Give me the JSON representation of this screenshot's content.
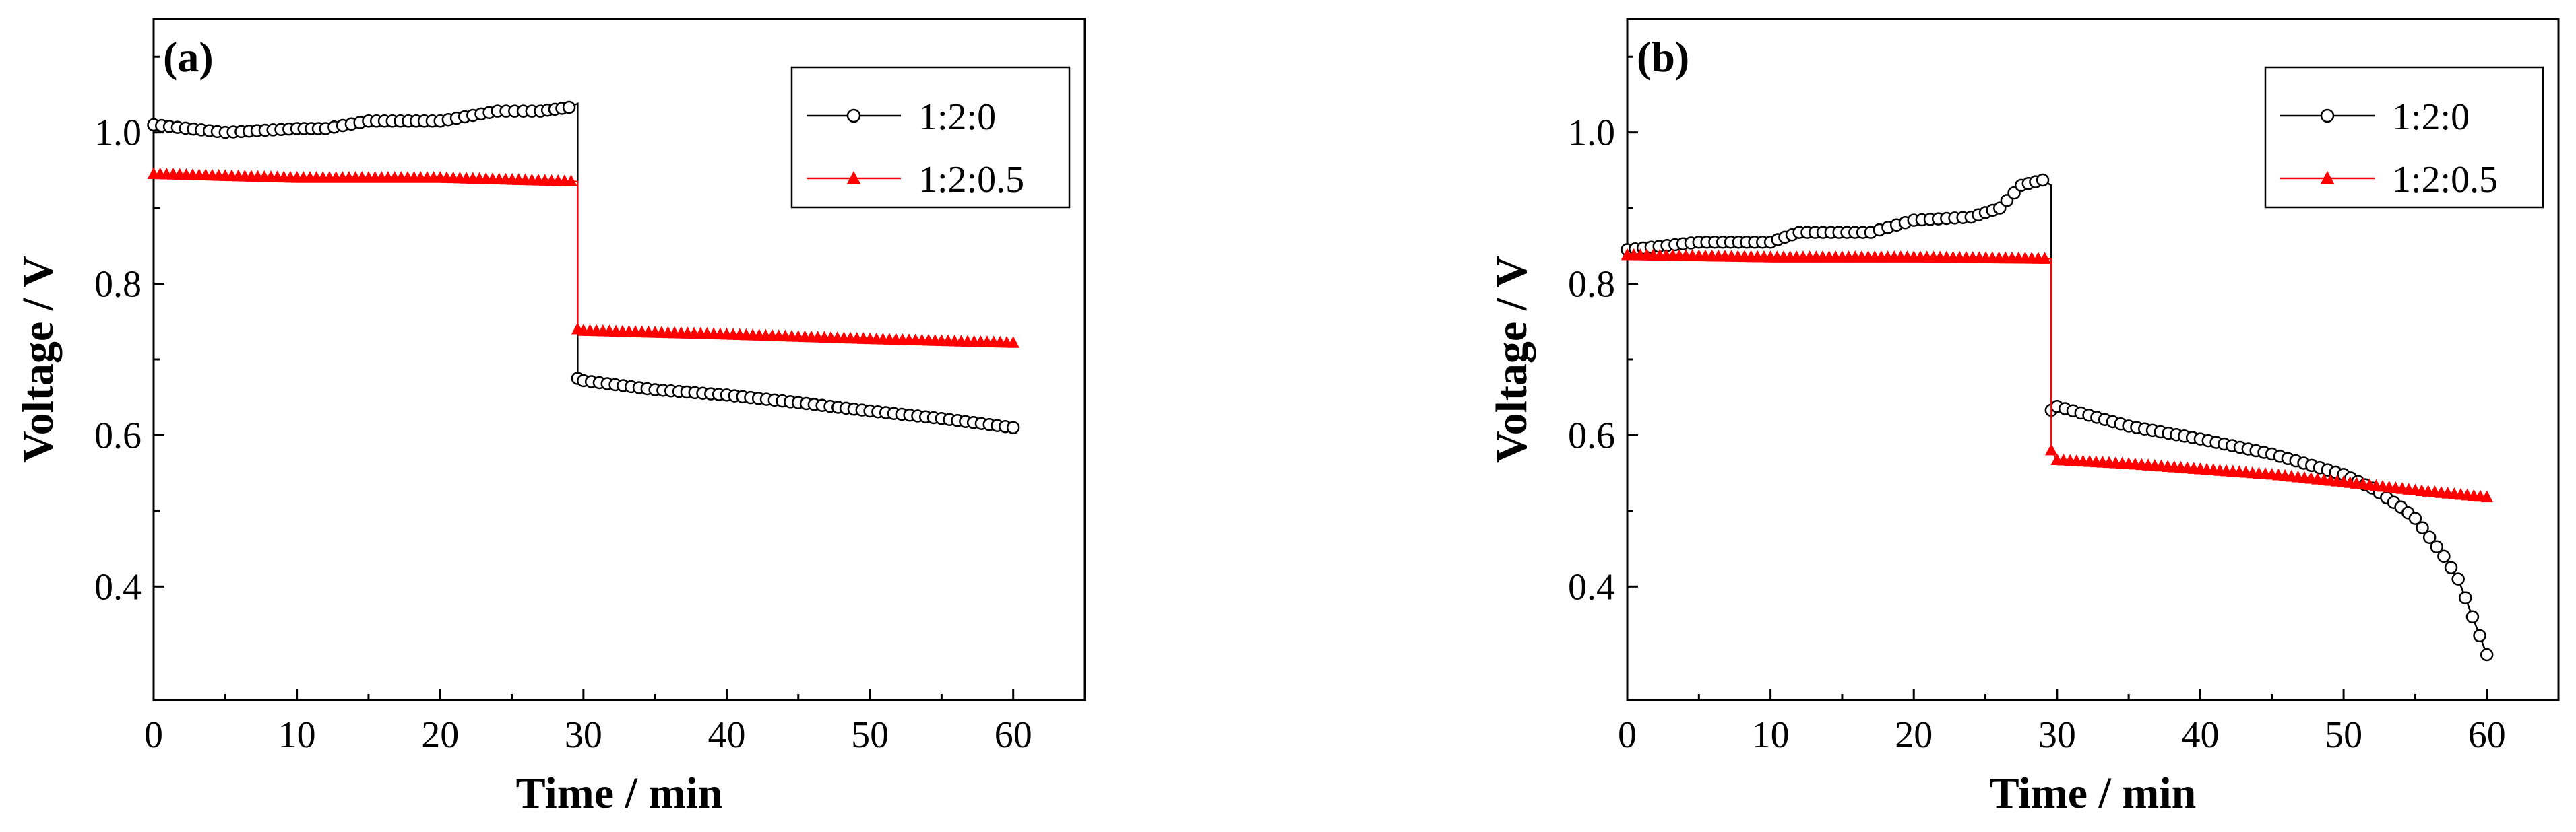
{
  "chart_data": [
    {
      "type": "line",
      "panel_label": "(a)",
      "xlabel": "Time / min",
      "ylabel": "Voltage / V",
      "xlim": [
        0,
        65
      ],
      "ylim": [
        0.25,
        1.15
      ],
      "xticks": [
        "0",
        "10",
        "20",
        "30",
        "40",
        "50",
        "60"
      ],
      "yticks": [
        "0.4",
        "0.6",
        "0.8",
        "1.0"
      ],
      "legend_position": "top-right",
      "series": [
        {
          "name": "1:2:0",
          "color": "#000000",
          "marker": "open-circle",
          "x": [
            0,
            5,
            10,
            12,
            15,
            20,
            24,
            27,
            29,
            29.6,
            29.6,
            30,
            35,
            40,
            45,
            50,
            55,
            60
          ],
          "y": [
            1.01,
            1.0,
            1.005,
            1.005,
            1.015,
            1.015,
            1.028,
            1.028,
            1.033,
            1.038,
            0.675,
            0.672,
            0.66,
            0.653,
            0.643,
            0.632,
            0.622,
            0.61
          ]
        },
        {
          "name": "1:2:0.5",
          "color": "#ff0000",
          "marker": "filled-triangle",
          "x": [
            0,
            10,
            20,
            29.6,
            29.6,
            30,
            40,
            50,
            60
          ],
          "y": [
            0.945,
            0.94,
            0.94,
            0.935,
            0.74,
            0.738,
            0.733,
            0.727,
            0.722
          ]
        }
      ]
    },
    {
      "type": "line",
      "panel_label": "(b)",
      "xlabel": "Time / min",
      "ylabel": "Voltage / V",
      "xlim": [
        0,
        65
      ],
      "ylim": [
        0.25,
        1.15
      ],
      "xticks": [
        "0",
        "10",
        "20",
        "30",
        "40",
        "50",
        "60"
      ],
      "yticks": [
        "0.4",
        "0.6",
        "0.8",
        "1.0"
      ],
      "legend_position": "top-right",
      "series": [
        {
          "name": "1:2:0",
          "color": "#000000",
          "marker": "open-circle",
          "x": [
            0,
            5,
            10,
            12,
            17,
            20,
            24,
            26,
            27.5,
            29,
            29.6,
            29.6,
            30,
            35,
            40,
            45,
            50,
            52,
            54,
            55,
            56,
            57,
            58,
            59,
            60
          ],
          "y": [
            0.845,
            0.855,
            0.855,
            0.868,
            0.868,
            0.884,
            0.888,
            0.9,
            0.93,
            0.937,
            0.93,
            0.633,
            0.638,
            0.612,
            0.595,
            0.575,
            0.548,
            0.53,
            0.505,
            0.49,
            0.465,
            0.44,
            0.41,
            0.36,
            0.31
          ]
        },
        {
          "name": "1:2:0.5",
          "color": "#ff0000",
          "marker": "filled-triangle",
          "x": [
            0,
            10,
            20,
            29.6,
            29.6,
            30,
            35,
            40,
            45,
            50,
            55,
            60
          ],
          "y": [
            0.838,
            0.835,
            0.835,
            0.833,
            0.58,
            0.567,
            0.562,
            0.555,
            0.548,
            0.538,
            0.527,
            0.518
          ]
        }
      ]
    }
  ]
}
